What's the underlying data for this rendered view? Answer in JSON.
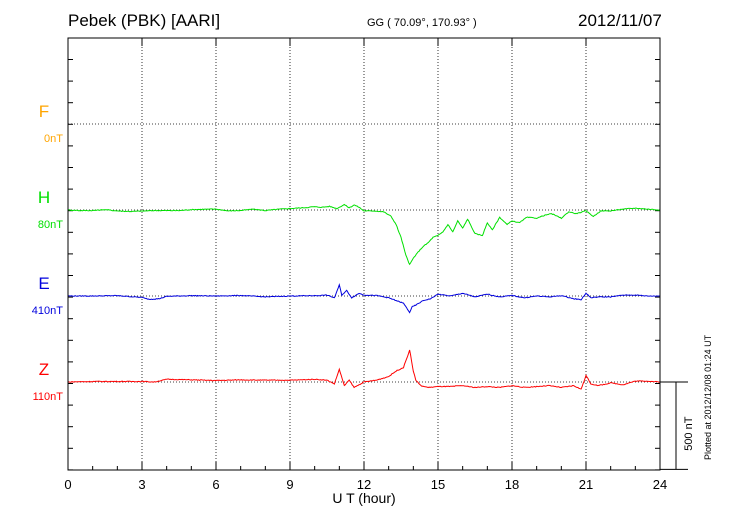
{
  "header": {
    "station": "Pebek (PBK)  [AARI]",
    "coords": "GG ( 70.09°, 170.93° )",
    "date": "2012/11/07"
  },
  "footer": {
    "plotted": "Plotted at 2012/12/08 01:24 UT"
  },
  "chart_data": {
    "type": "line",
    "xlabel": "U T (hour)",
    "xlim": [
      0,
      24
    ],
    "xticks": [
      0,
      3,
      6,
      9,
      12,
      15,
      18,
      21,
      24
    ],
    "grid": true,
    "scale_bar": {
      "label": "500 nT",
      "value": 500
    },
    "series": [
      {
        "name": "F",
        "baseline_label": "0nT",
        "color": "#ffa500",
        "offset_nT": 0,
        "x": [],
        "y": []
      },
      {
        "name": "H",
        "baseline_label": "80nT",
        "color": "#00e000",
        "offset_nT": 80,
        "x": [
          0,
          0.5,
          1,
          1.5,
          2,
          2.5,
          3,
          3.5,
          4,
          4.5,
          5,
          5.5,
          6,
          6.5,
          7,
          7.5,
          8,
          8.5,
          9,
          9.5,
          10,
          10.3,
          10.6,
          10.9,
          11.2,
          11.4,
          11.6,
          11.8,
          12,
          12.4,
          12.8,
          13.1,
          13.3,
          13.5,
          13.7,
          13.85,
          14,
          14.2,
          14.4,
          14.6,
          14.8,
          15,
          15.2,
          15.4,
          15.6,
          15.8,
          16,
          16.2,
          16.5,
          16.8,
          17,
          17.2,
          17.5,
          17.8,
          18,
          18.3,
          18.6,
          19,
          19.3,
          19.6,
          20,
          20.3,
          20.6,
          21,
          21.3,
          21.6,
          22,
          22.5,
          23,
          23.5,
          24
        ],
        "y": [
          0,
          -3,
          -3,
          2,
          -5,
          -8,
          -6,
          -3,
          -3,
          -3,
          2,
          4,
          5,
          -5,
          -3,
          5,
          -3,
          4,
          8,
          12,
          18,
          15,
          20,
          8,
          30,
          12,
          28,
          15,
          -5,
          -5,
          -10,
          -35,
          -80,
          -150,
          -250,
          -300,
          -265,
          -230,
          -200,
          -180,
          -150,
          -140,
          -120,
          -80,
          -120,
          -60,
          -100,
          -50,
          -130,
          -140,
          -70,
          -110,
          -40,
          -80,
          -60,
          -70,
          -40,
          -45,
          -30,
          -20,
          -45,
          -10,
          -20,
          -5,
          -35,
          -5,
          -5,
          5,
          10,
          5,
          0
        ]
      },
      {
        "name": "E",
        "baseline_label": "410nT",
        "color": "#0000dd",
        "offset_nT": 410,
        "x": [
          0,
          1,
          2,
          3,
          3.3,
          3.7,
          4,
          5,
          6,
          7,
          8,
          9,
          10,
          10.5,
          10.8,
          11,
          11.1,
          11.3,
          11.5,
          11.8,
          12,
          12.5,
          13,
          13.3,
          13.6,
          13.85,
          13.95,
          14.1,
          14.4,
          14.7,
          15,
          15.5,
          16,
          16.5,
          17,
          17.5,
          18,
          18.5,
          19,
          19.5,
          20,
          20.5,
          20.8,
          21,
          21.2,
          21.5,
          22,
          22.5,
          23,
          23.5,
          24
        ],
        "y": [
          0,
          0,
          2,
          -8,
          -18,
          -15,
          -2,
          2,
          0,
          3,
          -5,
          0,
          2,
          5,
          -10,
          60,
          5,
          30,
          -10,
          15,
          5,
          3,
          -10,
          -25,
          -40,
          -90,
          -60,
          -50,
          -25,
          -15,
          10,
          0,
          15,
          -5,
          10,
          -5,
          3,
          -10,
          0,
          -5,
          2,
          -15,
          -20,
          15,
          -10,
          -5,
          -5,
          5,
          5,
          0,
          0
        ]
      },
      {
        "name": "Z",
        "baseline_label": "110nT",
        "color": "#ff0000",
        "offset_nT": 110,
        "x": [
          0,
          1,
          2,
          3,
          3.5,
          4,
          5,
          6,
          7,
          8,
          9,
          9.5,
          10,
          10.5,
          10.8,
          11,
          11.2,
          11.4,
          11.6,
          11.8,
          12,
          12.5,
          13,
          13.3,
          13.6,
          13.85,
          14,
          14.1,
          14.3,
          14.6,
          15,
          15.5,
          16,
          16.5,
          17,
          17.5,
          18,
          18.5,
          19,
          19.5,
          20,
          20.5,
          20.8,
          21,
          21.2,
          21.5,
          22,
          22.5,
          23,
          23.5,
          24
        ],
        "y": [
          0,
          3,
          3,
          3,
          0,
          15,
          12,
          8,
          12,
          10,
          10,
          12,
          15,
          10,
          -10,
          70,
          -20,
          10,
          -30,
          -15,
          0,
          10,
          30,
          60,
          80,
          175,
          60,
          10,
          -20,
          -30,
          -25,
          -25,
          -20,
          -30,
          -25,
          -30,
          -20,
          -30,
          -25,
          -20,
          -30,
          -20,
          -40,
          35,
          -10,
          -20,
          -5,
          -15,
          5,
          5,
          0
        ]
      }
    ]
  }
}
